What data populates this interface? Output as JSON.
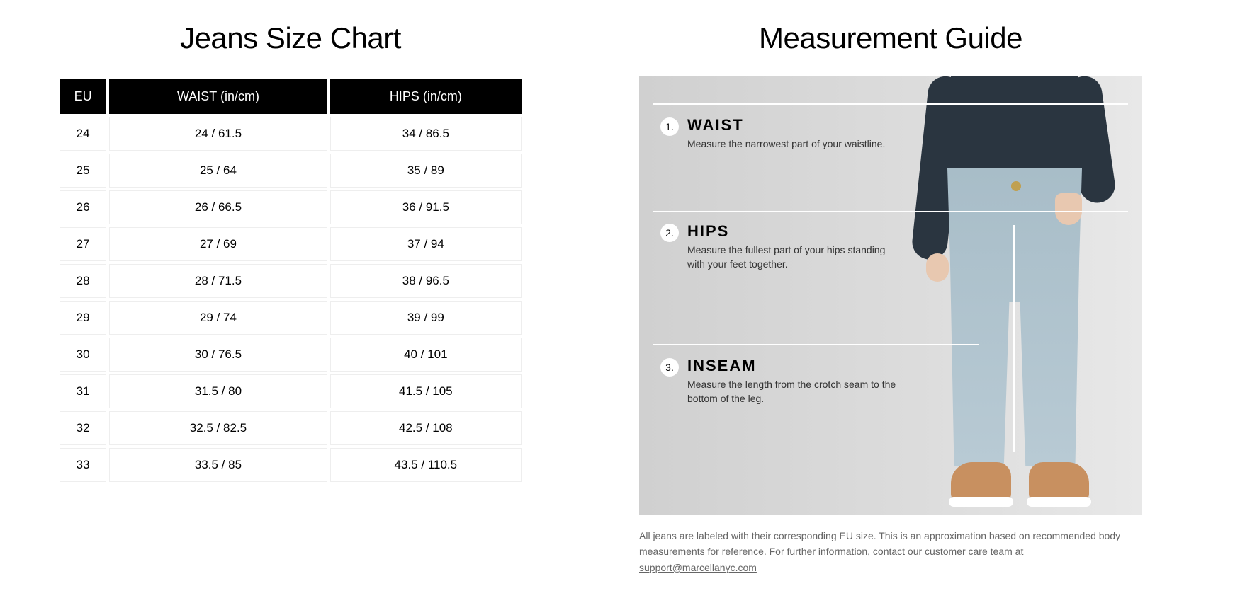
{
  "left": {
    "title": "Jeans Size Chart",
    "columns": [
      "EU",
      "WAIST (in/cm)",
      "HIPS (in/cm)"
    ],
    "rows": [
      [
        "24",
        "24 / 61.5",
        "34 / 86.5"
      ],
      [
        "25",
        "25 / 64",
        "35 / 89"
      ],
      [
        "26",
        "26 / 66.5",
        "36 / 91.5"
      ],
      [
        "27",
        "27 / 69",
        "37 / 94"
      ],
      [
        "28",
        "28 / 71.5",
        "38 / 96.5"
      ],
      [
        "29",
        "29 / 74",
        "39 / 99"
      ],
      [
        "30",
        "30 / 76.5",
        "40 / 101"
      ],
      [
        "31",
        "31.5 / 80",
        "41.5 / 105"
      ],
      [
        "32",
        "32.5 / 82.5",
        "42.5 / 108"
      ],
      [
        "33",
        "33.5 / 85",
        "43.5 / 110.5"
      ]
    ]
  },
  "right": {
    "title": "Measurement Guide",
    "steps": [
      {
        "num": "1.",
        "label": "WAIST",
        "desc": "Measure the narrowest part of your waistline."
      },
      {
        "num": "2.",
        "label": "HIPS",
        "desc": "Measure the fullest part of your hips standing with your feet together."
      },
      {
        "num": "3.",
        "label": "INSEAM",
        "desc": "Measure the length from the crotch seam to the bottom of the leg."
      }
    ],
    "footnote_a": "All jeans are labeled with their corresponding EU size. This is an approximation based on recommended body measurements for reference. For further information, contact our customer care team at ",
    "footnote_email": "support@marcellanyc.com"
  },
  "style": {
    "header_bg": "#000000",
    "header_fg": "#ffffff",
    "cell_border": "#eeeeee",
    "panel_bg": "#d8d8d8",
    "line_color": "#ffffff"
  }
}
